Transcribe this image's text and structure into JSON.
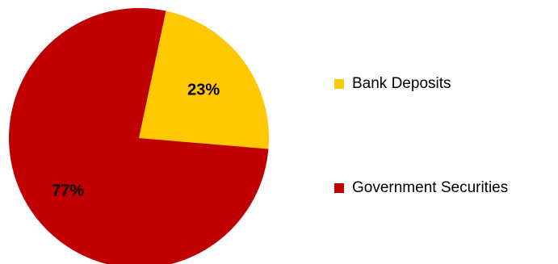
{
  "chart_data": {
    "type": "pie",
    "title": "",
    "slices": [
      {
        "label": "Bank Deposits",
        "value": 23,
        "display": "23%",
        "color": "#FFC800"
      },
      {
        "label": "Government Securities",
        "value": 77,
        "display": "77%",
        "color": "#C00000"
      }
    ],
    "start_angle_deg": 12,
    "direction": "clockwise",
    "legend_position": "right"
  }
}
